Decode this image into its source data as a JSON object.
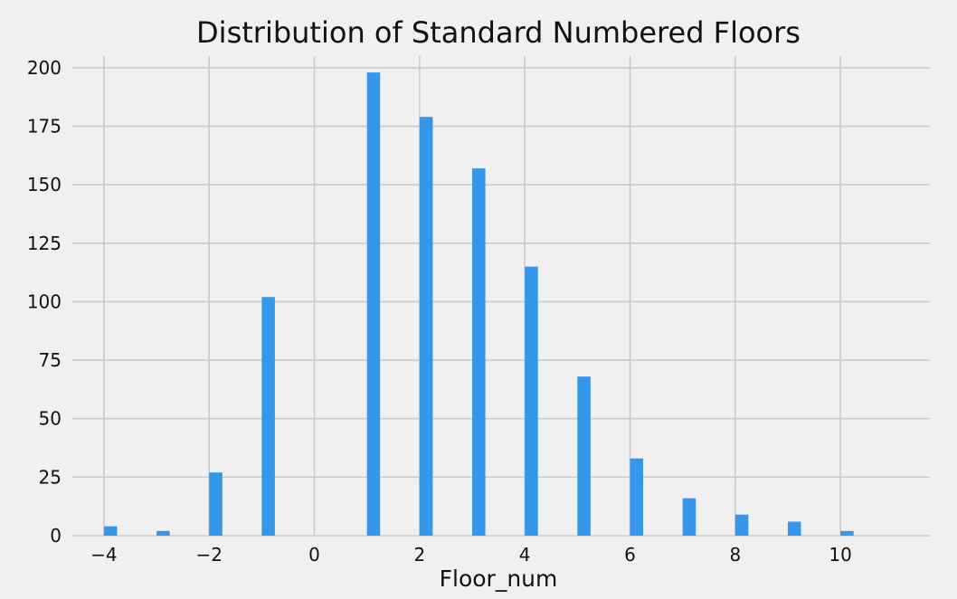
{
  "chart_data": {
    "type": "bar",
    "title": "Distribution of Standard Numbered Floors",
    "xlabel": "Floor_num",
    "ylabel": "",
    "xlim": [
      -4.6,
      11.7
    ],
    "ylim": [
      0,
      205
    ],
    "xticks": [
      -4,
      -2,
      0,
      2,
      4,
      6,
      8,
      10
    ],
    "xtick_labels": [
      "−4",
      "−2",
      "0",
      "2",
      "4",
      "6",
      "8",
      "10"
    ],
    "yticks": [
      0,
      25,
      50,
      75,
      100,
      125,
      150,
      175,
      200
    ],
    "ytick_labels": [
      "0",
      "25",
      "50",
      "75",
      "100",
      "125",
      "150",
      "175",
      "200"
    ],
    "bin_width": 0.25,
    "grid": true,
    "bar_color": "#3497ea",
    "background": "#f0f0f0",
    "x": [
      -4,
      -3,
      -2,
      -1,
      1,
      2,
      3,
      4,
      5,
      6,
      7,
      8,
      9,
      10
    ],
    "values": [
      4,
      2,
      27,
      102,
      198,
      179,
      157,
      115,
      68,
      33,
      16,
      9,
      6,
      2
    ]
  }
}
